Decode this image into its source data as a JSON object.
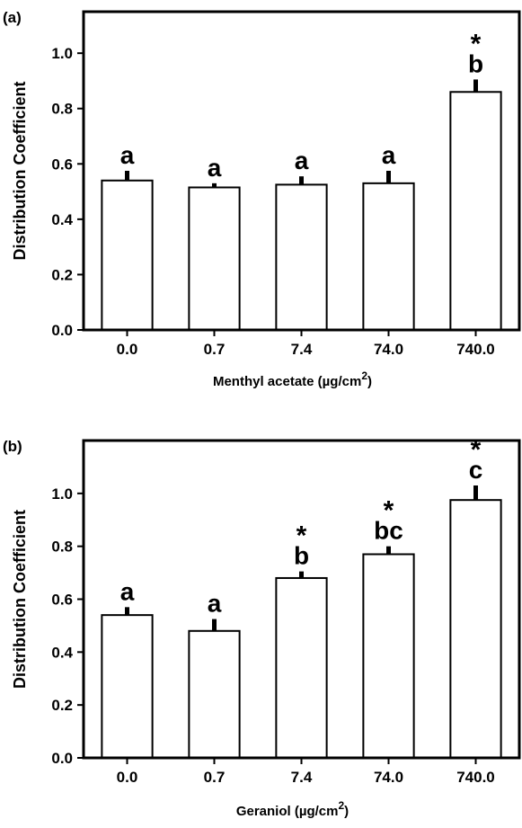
{
  "chart_data": [
    {
      "type": "bar",
      "panel_label": "(a)",
      "categories": [
        "0.0",
        "0.7",
        "7.4",
        "74.0",
        "740.0"
      ],
      "values": [
        0.54,
        0.515,
        0.525,
        0.53,
        0.86
      ],
      "error_upper": [
        0.035,
        0.015,
        0.03,
        0.045,
        0.045
      ],
      "significance_letters": [
        "a",
        "a",
        "a",
        "a",
        "b"
      ],
      "significance_stars": [
        "",
        "",
        "",
        "",
        "*"
      ],
      "xlabel_prefix": "Menthyl acetate (µg/cm",
      "xlabel_sup": "2",
      "xlabel_suffix": ")",
      "ylabel": "Distribution Coefficient",
      "ylim": [
        0,
        1.15
      ],
      "yticks": [
        "0.0",
        "0.2",
        "0.4",
        "0.6",
        "0.8",
        "1.0"
      ],
      "bar_fill": "#ffffff",
      "bar_stroke": "#000000",
      "grid": false
    },
    {
      "type": "bar",
      "panel_label": "(b)",
      "categories": [
        "0.0",
        "0.7",
        "7.4",
        "74.0",
        "740.0"
      ],
      "values": [
        0.54,
        0.48,
        0.68,
        0.77,
        0.975
      ],
      "error_upper": [
        0.03,
        0.045,
        0.025,
        0.03,
        0.055
      ],
      "significance_letters": [
        "a",
        "a",
        "b",
        "bc",
        "c"
      ],
      "significance_stars": [
        "",
        "",
        "*",
        "*",
        "*"
      ],
      "xlabel_prefix": "Geraniol (µg/cm",
      "xlabel_sup": "2",
      "xlabel_suffix": ")",
      "ylabel": "Distribution Coefficient",
      "ylim": [
        0,
        1.2
      ],
      "yticks": [
        "0.0",
        "0.2",
        "0.4",
        "0.6",
        "0.8",
        "1.0"
      ],
      "bar_fill": "#ffffff",
      "bar_stroke": "#000000",
      "grid": false
    }
  ]
}
